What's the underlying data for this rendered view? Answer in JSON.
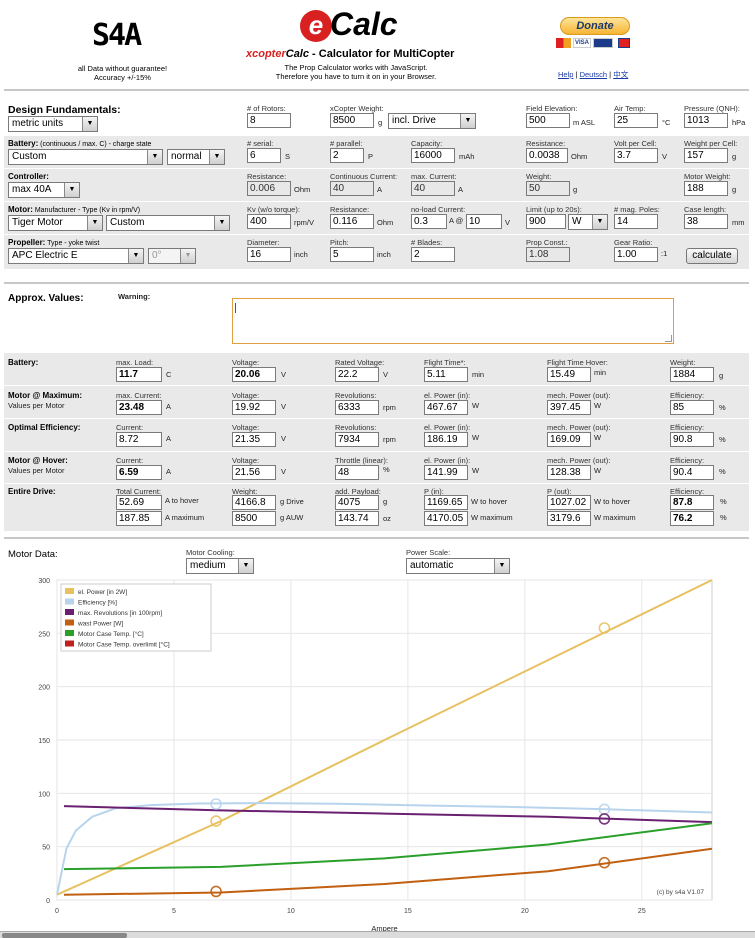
{
  "header": {
    "brand": "S4A",
    "disclaimer1": "all Data without guarantee!",
    "disclaimer2": "Accuracy +/-15%",
    "logo_e": "e",
    "logo_calc": "Calc",
    "title_prefix": "xcopter",
    "title_mid": "Calc",
    "title_suffix": " - Calculator for MultiCopter",
    "js1": "The Prop Calculator works with JavaScript.",
    "js2": "Therefore you have to turn it on in your Browser.",
    "donate": "Donate",
    "links": [
      "Help",
      "Deutsch",
      "中文"
    ],
    "sep": " | "
  },
  "fund": {
    "title": "Design Fundamentals:",
    "units": "metric units",
    "rotors_label": "# of Rotors:",
    "rotors": "8",
    "weight_label": "xCopter Weight:",
    "weight": "8500",
    "weight_unit": "g",
    "drive": "incl. Drive",
    "elev_label": "Field Elevation:",
    "elev": "500",
    "elev_unit": "m ASL",
    "temp_label": "Air Temp:",
    "temp": "25",
    "temp_unit": "°C",
    "qnh_label": "Pressure (QNH):",
    "qnh": "1013",
    "qnh_unit": "hPa"
  },
  "battery": {
    "title": "Battery:",
    "title_sub": " (continuous / max. C) - charge state",
    "type": "Custom",
    "state": "normal",
    "serial_label": "# serial:",
    "serial": "6",
    "serial_unit": "S",
    "parallel_label": "# parallel:",
    "parallel": "2",
    "parallel_unit": "P",
    "cap_label": "Capacity:",
    "cap": "16000",
    "cap_unit": "mAh",
    "res_label": "Resistance:",
    "res": "0.0038",
    "res_unit": "Ohm",
    "vcell_label": "Volt per Cell:",
    "vcell": "3.7",
    "vcell_unit": "V",
    "wcell_label": "Weight per Cell:",
    "wcell": "157",
    "wcell_unit": "g"
  },
  "controller": {
    "title": "Controller:",
    "type": "max 40A",
    "res_label": "Resistance:",
    "res": "0.006",
    "res_unit": "Ohm",
    "cont_label": "Continuous Current:",
    "cont": "40",
    "cont_unit": "A",
    "max_label": "max. Current:",
    "max": "40",
    "max_unit": "A",
    "weight_label": "Weight:",
    "weight": "50",
    "weight_unit": "g",
    "mweight_label": "Motor Weight:",
    "mweight": "188",
    "mweight_unit": "g"
  },
  "motor": {
    "title": "Motor:",
    "title_sub": " Manufacturer - Type (Kv in rpm/V)",
    "maker": "Tiger Motor",
    "type": "Custom",
    "kv_label": "Kv (w/o torque):",
    "kv": "400",
    "kv_unit": "rpm/V",
    "res_label": "Resistance:",
    "res": "0.116",
    "res_unit": "Ohm",
    "nl_label": "no-load Current:",
    "nl": "0.3",
    "nl_unit": "A @",
    "nlv": "10",
    "nlv_unit": "V",
    "limit_label": "Limit (up to 20s):",
    "limit": "900",
    "limit_sel": "W",
    "poles_label": "# mag. Poles:",
    "poles": "14",
    "len_label": "Case length:",
    "len": "38",
    "len_unit": "mm"
  },
  "prop": {
    "title": "Propeller:",
    "title_sub": " Type - yoke twist",
    "type": "APC Electric E",
    "twist": "0°",
    "dia_label": "Diameter:",
    "dia": "16",
    "dia_unit": "inch",
    "pitch_label": "Pitch:",
    "pitch": "5",
    "pitch_unit": "inch",
    "blades_label": "# Blades:",
    "blades": "2",
    "const_label": "Prop Const.:",
    "const": "1.08",
    "gear_label": "Gear Ratio:",
    "gear": "1.00",
    "gear_unit": ":1",
    "calc": "calculate"
  },
  "approx": {
    "title": "Approx. Values:",
    "warning_label": "Warning:"
  },
  "res_battery": {
    "title": "Battery:",
    "load_label": "max. Load:",
    "load": "11.7",
    "load_unit": "C",
    "volt_label": "Voltage:",
    "volt": "20.06",
    "volt_unit": "V",
    "rated_label": "Rated Voltage:",
    "rated": "22.2",
    "rated_unit": "V",
    "flight_label": "Flight Time*:",
    "flight": "5.11",
    "flight_unit": "min",
    "hover_label": "Flight Time Hover:",
    "hover": "15.49",
    "hover_unit": "min",
    "weight_label": "Weight:",
    "weight": "1884",
    "weight_unit": "g"
  },
  "res_max": {
    "title": "Motor @ Maximum:",
    "sub": "Values per Motor",
    "cur_label": "max. Current:",
    "cur": "23.48",
    "cur_unit": "A",
    "volt_label": "Voltage:",
    "volt": "19.92",
    "volt_unit": "V",
    "rev_label": "Revolutions:",
    "rev": "6333",
    "rev_unit": "rpm",
    "elp_label": "el. Power (in):",
    "elp": "467.67",
    "elp_unit": "W",
    "mech_label": "mech. Power (out):",
    "mech": "397.45",
    "mech_unit": "W",
    "eff_label": "Efficiency:",
    "eff": "85",
    "eff_unit": "%"
  },
  "res_opt": {
    "title": "Optimal Efficiency:",
    "cur_label": "Current:",
    "cur": "8.72",
    "cur_unit": "A",
    "volt_label": "Voltage:",
    "volt": "21.35",
    "volt_unit": "V",
    "rev_label": "Revolutions:",
    "rev": "7934",
    "rev_unit": "rpm",
    "elp_label": "el. Power (in):",
    "elp": "186.19",
    "elp_unit": "W",
    "mech_label": "mech. Power (out):",
    "mech": "169.09",
    "mech_unit": "W",
    "eff_label": "Efficiency:",
    "eff": "90.8",
    "eff_unit": "%"
  },
  "res_hover": {
    "title": "Motor @ Hover:",
    "sub": "Values per Motor",
    "cur_label": "Current:",
    "cur": "6.59",
    "cur_unit": "A",
    "volt_label": "Voltage:",
    "volt": "21.56",
    "volt_unit": "V",
    "thr_label": "Throttle (linear):",
    "thr": "48",
    "thr_unit": "%",
    "elp_label": "el. Power (in):",
    "elp": "141.99",
    "elp_unit": "W",
    "mech_label": "mech. Power (out):",
    "mech": "128.38",
    "mech_unit": "W",
    "eff_label": "Efficiency:",
    "eff": "90.4",
    "eff_unit": "%"
  },
  "res_drive": {
    "title": "Entire Drive:",
    "tc_label": "Total Current:",
    "tc1": "52.69",
    "tc1_unit": "A to hover",
    "tc2": "187.85",
    "tc2_unit": "A maximum",
    "w_label": "Weight:",
    "w1": "4166.8",
    "w1_unit": "g Drive",
    "w2": "8500",
    "w2_unit": "g AUW",
    "pl_label": "add. Payload:",
    "pl1": "4075",
    "pl1_unit": "g",
    "pl2": "143.74",
    "pl2_unit": "oz",
    "pin_label": "P (in):",
    "pin1": "1169.65",
    "pin1_unit": "W to hover",
    "pin2": "4170.05",
    "pin2_unit": "W maximum",
    "pout_label": "P (out):",
    "pout1": "1027.02",
    "pout1_unit": "W to hover",
    "pout2": "3179.6",
    "pout2_unit": "W maximum",
    "eff_label": "Efficiency:",
    "eff1": "87.8",
    "eff1_unit": "%",
    "eff2": "76.2",
    "eff2_unit": "%"
  },
  "motordata": {
    "title": "Motor Data:",
    "cool_label": "Motor Cooling:",
    "cool": "medium",
    "scale_label": "Power Scale:",
    "scale": "automatic"
  },
  "chart_data": {
    "type": "line",
    "xlabel": "Ampere",
    "ylabel": "",
    "xlim": [
      0,
      28
    ],
    "ylim": [
      0,
      300
    ],
    "xticks": [
      0,
      5,
      10,
      15,
      20,
      25
    ],
    "yticks": [
      0,
      50,
      100,
      150,
      200,
      250,
      300
    ],
    "grid": true,
    "legend_position": "top-left",
    "credit": "(c) by s4a   V1.07",
    "series": [
      {
        "name": "el. Power [in 2W]",
        "color": "#e8c060",
        "x": [
          0,
          7,
          14,
          21,
          28
        ],
        "y": [
          5,
          74,
          150,
          225,
          300
        ]
      },
      {
        "name": "Efficiency [%]",
        "color": "#b8d4ec",
        "x": [
          0,
          0.4,
          0.8,
          1.5,
          2.5,
          4,
          6,
          8.7,
          12,
          16,
          20,
          23.5,
          28
        ],
        "y": [
          5,
          48,
          65,
          78,
          86,
          89,
          90.5,
          90.8,
          90.2,
          88.5,
          87,
          85,
          82
        ]
      },
      {
        "name": "max. Revolutions [in 100rpm]",
        "color": "#6a2070",
        "x": [
          0.3,
          7,
          14,
          21,
          28
        ],
        "y": [
          88,
          84,
          81,
          78,
          73
        ]
      },
      {
        "name": "wast Power [W]",
        "color": "#c06010",
        "x": [
          0.3,
          7,
          14,
          21,
          28
        ],
        "y": [
          5,
          7,
          15,
          27,
          48
        ]
      },
      {
        "name": "Motor Case Temp. [°C]",
        "color": "#2aa02a",
        "x": [
          0.3,
          7,
          14,
          21,
          28
        ],
        "y": [
          29,
          31,
          39,
          52,
          72
        ]
      },
      {
        "name": "Motor Case Temp. overlimit [°C]",
        "color": "#c02020",
        "x": [],
        "y": []
      }
    ],
    "markers": [
      {
        "x": 6.8,
        "y": 74,
        "color": "#e8c060"
      },
      {
        "x": 6.8,
        "y": 90,
        "color": "#b8d4ec"
      },
      {
        "x": 6.8,
        "y": 8,
        "color": "#c06010"
      },
      {
        "x": 23.4,
        "y": 255,
        "color": "#e8c060"
      },
      {
        "x": 23.4,
        "y": 85,
        "color": "#b8d4ec"
      },
      {
        "x": 23.4,
        "y": 76,
        "color": "#6a2070"
      },
      {
        "x": 23.4,
        "y": 35,
        "color": "#c06010"
      }
    ]
  }
}
